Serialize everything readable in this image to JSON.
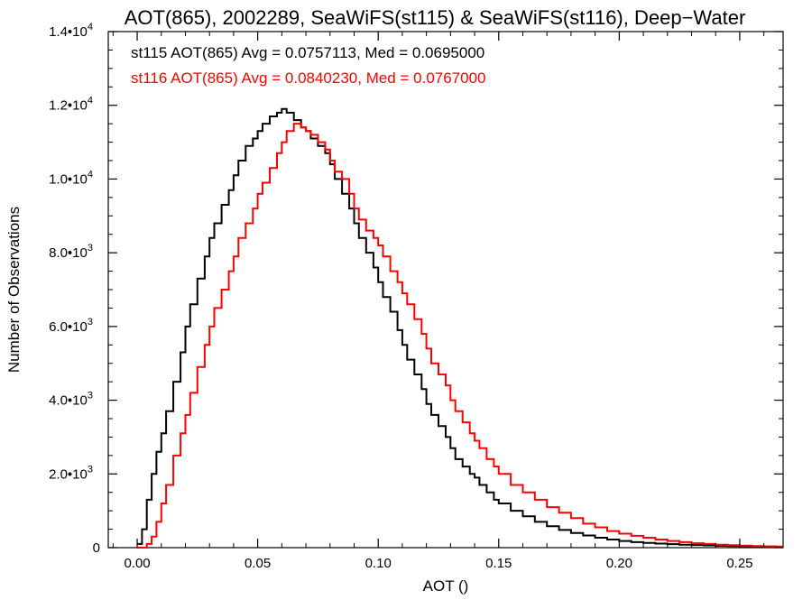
{
  "chart_data": {
    "type": "line",
    "title": "AOT(865), 2002289, SeaWiFS(st115) & SeaWiFS(st116), Deep−Water",
    "xlabel": "AOT ()",
    "ylabel": "Number of Observations",
    "xlim": [
      -0.012,
      0.268
    ],
    "ylim": [
      0,
      14000
    ],
    "x_ticks": [
      "0.00",
      "0.05",
      "0.10",
      "0.15",
      "0.20",
      "0.25"
    ],
    "x_tick_values": [
      0.0,
      0.05,
      0.1,
      0.15,
      0.2,
      0.25
    ],
    "y_ticks": [
      {
        "mantissa": "0",
        "exp": ""
      },
      {
        "mantissa": "2.0•10",
        "exp": "3"
      },
      {
        "mantissa": "4.0•10",
        "exp": "3"
      },
      {
        "mantissa": "6.0•10",
        "exp": "3"
      },
      {
        "mantissa": "8.0•10",
        "exp": "3"
      },
      {
        "mantissa": "1.0•10",
        "exp": "4"
      },
      {
        "mantissa": "1.2•10",
        "exp": "4"
      },
      {
        "mantissa": "1.4•10",
        "exp": "4"
      }
    ],
    "y_tick_values": [
      0,
      2000,
      4000,
      6000,
      8000,
      10000,
      12000,
      14000
    ],
    "grid": false,
    "step": true,
    "annotations": [
      {
        "text": "st115 AOT(865) Avg = 0.0757113, Med = 0.0695000",
        "color": "#000000"
      },
      {
        "text": "st116 AOT(865) Avg = 0.0840230, Med = 0.0767000",
        "color": "#ff0000"
      }
    ],
    "series": [
      {
        "color": "#000000",
        "x": [
          0.0,
          0.002,
          0.004,
          0.006,
          0.008,
          0.01,
          0.012,
          0.015,
          0.018,
          0.02,
          0.022,
          0.025,
          0.028,
          0.03,
          0.032,
          0.035,
          0.038,
          0.04,
          0.042,
          0.045,
          0.048,
          0.05,
          0.052,
          0.055,
          0.058,
          0.06,
          0.062,
          0.065,
          0.068,
          0.07,
          0.072,
          0.075,
          0.078,
          0.08,
          0.082,
          0.085,
          0.088,
          0.09,
          0.092,
          0.095,
          0.098,
          0.1,
          0.102,
          0.105,
          0.108,
          0.11,
          0.112,
          0.115,
          0.118,
          0.12,
          0.122,
          0.125,
          0.128,
          0.13,
          0.132,
          0.135,
          0.138,
          0.14,
          0.142,
          0.145,
          0.148,
          0.15,
          0.155,
          0.16,
          0.165,
          0.17,
          0.175,
          0.18,
          0.185,
          0.19,
          0.195,
          0.2,
          0.205,
          0.21,
          0.215,
          0.22,
          0.225,
          0.23,
          0.235,
          0.24,
          0.245,
          0.25,
          0.255,
          0.26,
          0.265
        ],
        "y": [
          100,
          500,
          1300,
          2000,
          2600,
          3100,
          3700,
          4500,
          5300,
          6000,
          6600,
          7300,
          7900,
          8400,
          8800,
          9300,
          9700,
          10100,
          10500,
          10900,
          11100,
          11300,
          11500,
          11700,
          11800,
          11900,
          11800,
          11600,
          11400,
          11300,
          11100,
          10900,
          10700,
          10400,
          10000,
          9600,
          9200,
          8800,
          8400,
          8000,
          7600,
          7200,
          6800,
          6400,
          5900,
          5500,
          5100,
          4700,
          4300,
          3900,
          3600,
          3300,
          3000,
          2700,
          2400,
          2200,
          2000,
          1900,
          1700,
          1500,
          1300,
          1200,
          1000,
          850,
          700,
          580,
          480,
          400,
          330,
          270,
          220,
          180,
          150,
          130,
          110,
          95,
          80,
          70,
          60,
          50,
          45,
          40,
          35,
          30,
          25
        ]
      },
      {
        "color": "#ff0000",
        "x": [
          0.0,
          0.002,
          0.004,
          0.006,
          0.008,
          0.01,
          0.012,
          0.015,
          0.018,
          0.02,
          0.022,
          0.025,
          0.028,
          0.03,
          0.032,
          0.035,
          0.038,
          0.04,
          0.042,
          0.045,
          0.048,
          0.05,
          0.052,
          0.055,
          0.058,
          0.06,
          0.062,
          0.065,
          0.068,
          0.07,
          0.072,
          0.075,
          0.078,
          0.08,
          0.082,
          0.085,
          0.088,
          0.09,
          0.092,
          0.095,
          0.098,
          0.1,
          0.102,
          0.105,
          0.108,
          0.11,
          0.112,
          0.115,
          0.118,
          0.12,
          0.122,
          0.125,
          0.128,
          0.13,
          0.132,
          0.135,
          0.138,
          0.14,
          0.142,
          0.145,
          0.148,
          0.15,
          0.155,
          0.16,
          0.165,
          0.17,
          0.175,
          0.18,
          0.185,
          0.19,
          0.195,
          0.2,
          0.205,
          0.21,
          0.215,
          0.22,
          0.225,
          0.23,
          0.235,
          0.24,
          0.245,
          0.25,
          0.255,
          0.26,
          0.265
        ],
        "y": [
          0,
          0,
          100,
          300,
          700,
          1200,
          1700,
          2500,
          3100,
          3600,
          4200,
          4900,
          5500,
          6000,
          6500,
          7000,
          7500,
          7900,
          8400,
          8800,
          9200,
          9600,
          9900,
          10300,
          10700,
          11000,
          11300,
          11500,
          11400,
          11300,
          11200,
          11000,
          10800,
          10500,
          10200,
          10000,
          9600,
          9200,
          8900,
          8600,
          8400,
          8200,
          7900,
          7500,
          7200,
          6900,
          6600,
          6200,
          5800,
          5400,
          5000,
          4700,
          4400,
          4000,
          3700,
          3400,
          3100,
          2900,
          2700,
          2400,
          2200,
          2000,
          1700,
          1500,
          1300,
          1100,
          950,
          800,
          650,
          550,
          450,
          380,
          320,
          270,
          220,
          180,
          150,
          120,
          100,
          80,
          65,
          55,
          45,
          35,
          30
        ]
      }
    ]
  }
}
